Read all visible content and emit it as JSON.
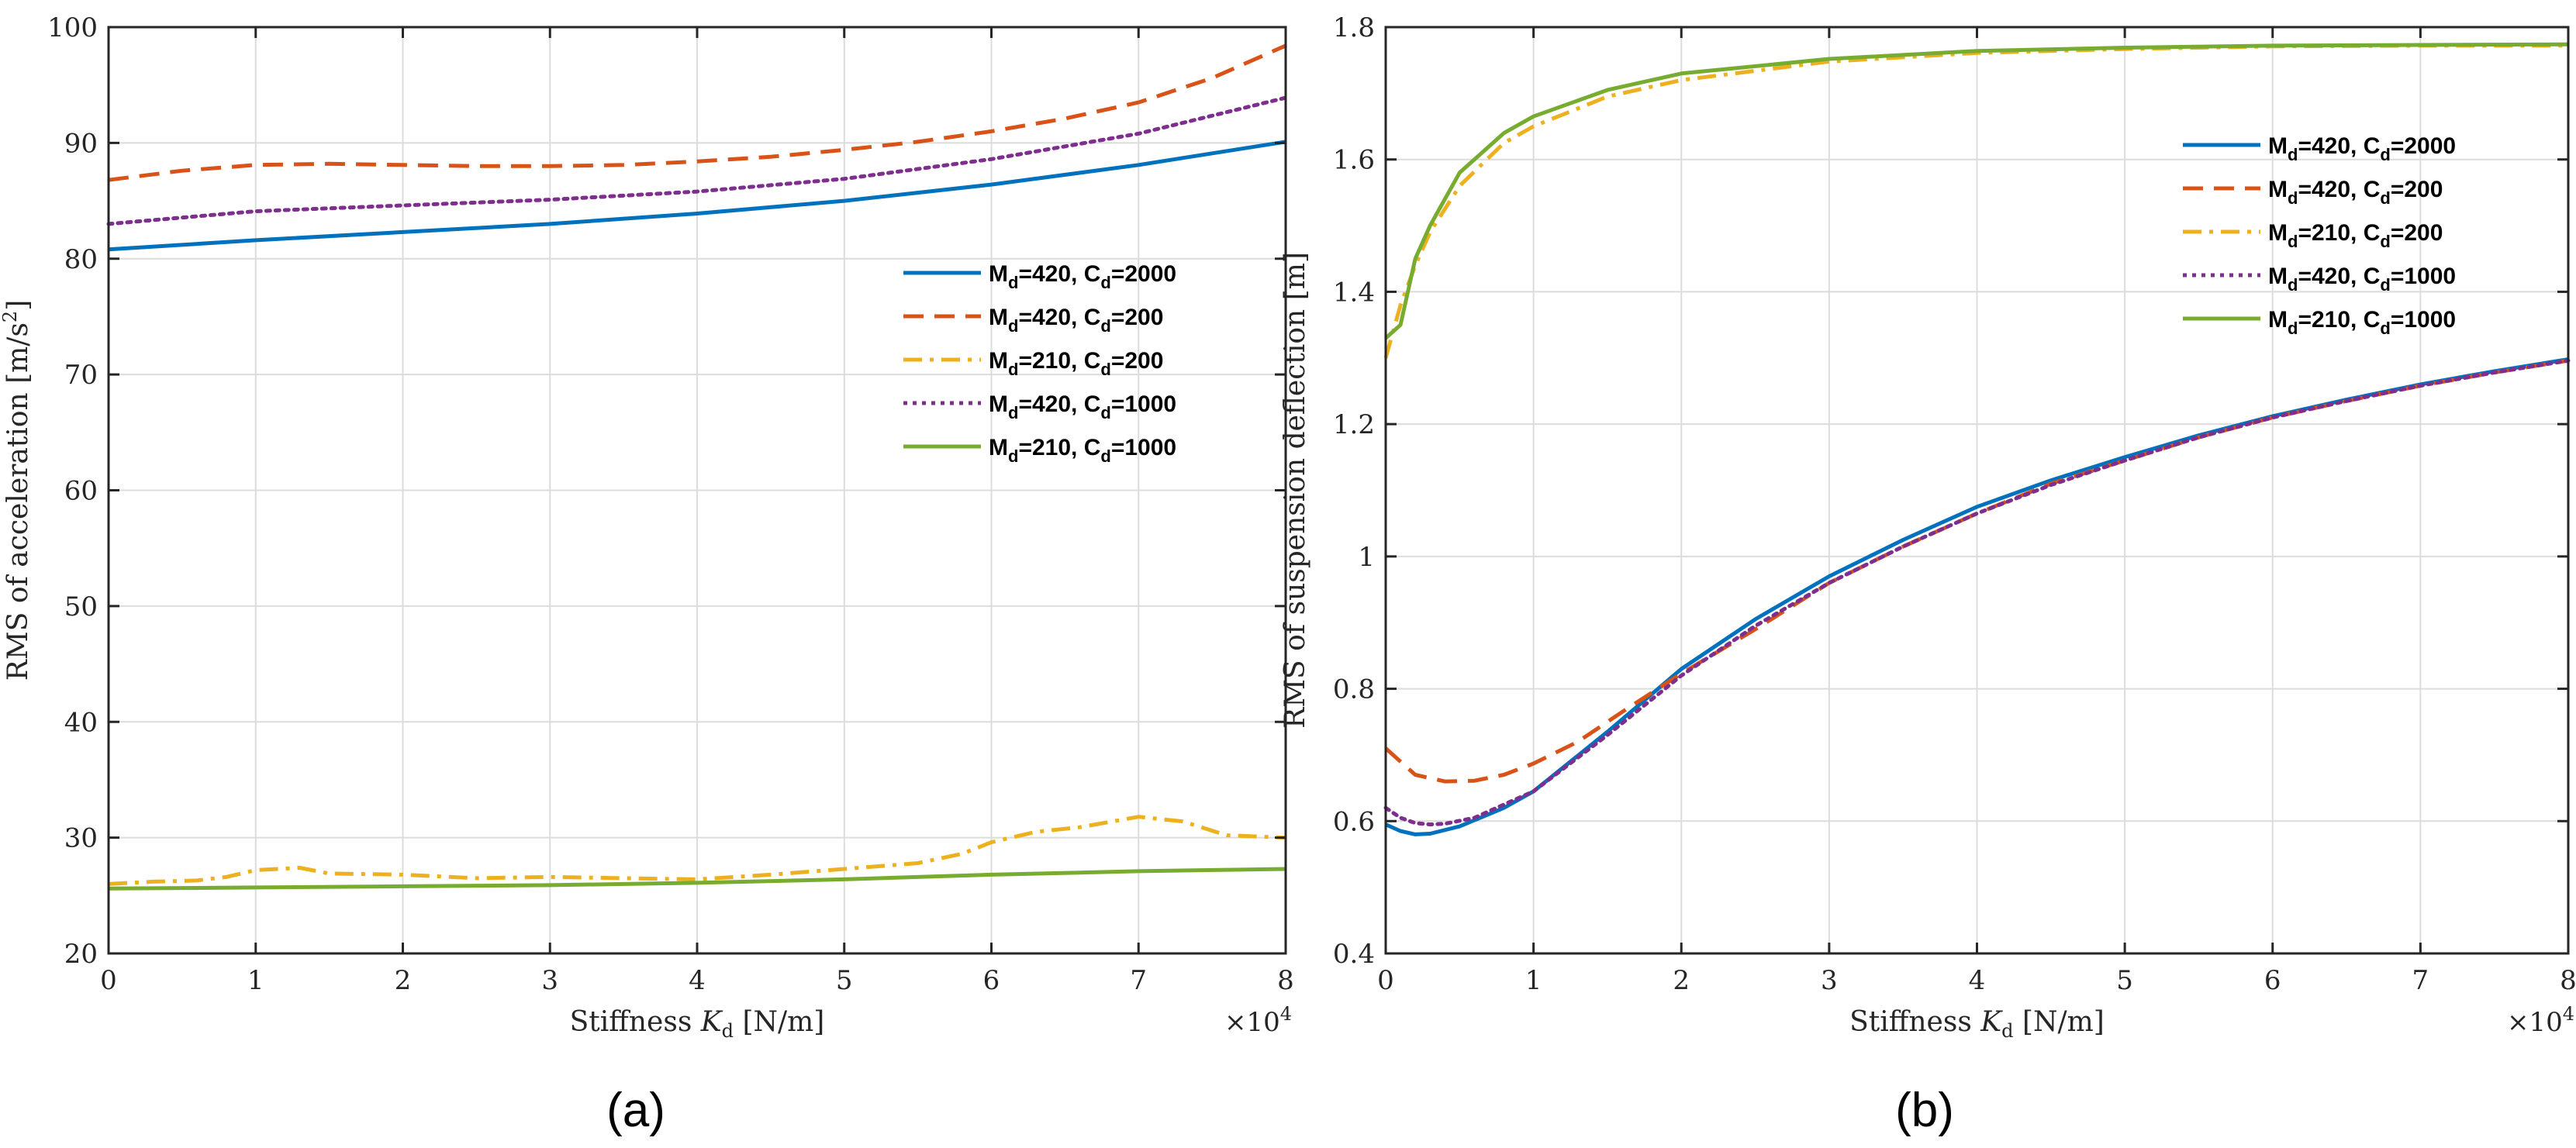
{
  "chart_data": [
    {
      "type": "line",
      "panel_label": "(a)",
      "xlabel": "Stiffness K_d [N/m]",
      "ylabel": "RMS of acceleration [m/s^2]",
      "x_multiplier": "×10^4",
      "xlim": [
        0,
        8
      ],
      "ylim": [
        20,
        100
      ],
      "xticks": [
        "0",
        "1",
        "2",
        "3",
        "4",
        "5",
        "6",
        "7",
        "8"
      ],
      "yticks": [
        "20",
        "30",
        "40",
        "50",
        "60",
        "70",
        "80",
        "90",
        "100"
      ],
      "grid": true,
      "legend_position": "center-right",
      "series": [
        {
          "name": "Md=420, Cd=2000",
          "legend": {
            "m": "420",
            "c": "2000"
          },
          "color": "#0072BD",
          "dash": "solid",
          "x": [
            0,
            1,
            2,
            3,
            4,
            5,
            6,
            7,
            8
          ],
          "y": [
            80.8,
            81.6,
            82.3,
            83.0,
            83.9,
            85.0,
            86.4,
            88.1,
            90.1
          ]
        },
        {
          "name": "Md=420, Cd=200",
          "legend": {
            "m": "420",
            "c": "200"
          },
          "color": "#D95319",
          "dash": "dashed",
          "x": [
            0,
            0.5,
            1,
            1.5,
            2,
            2.5,
            3,
            3.5,
            4,
            4.5,
            5,
            5.5,
            6,
            6.5,
            7,
            7.5,
            8
          ],
          "y": [
            86.8,
            87.6,
            88.1,
            88.2,
            88.1,
            88.0,
            88.0,
            88.1,
            88.4,
            88.8,
            89.4,
            90.1,
            91.0,
            92.1,
            93.5,
            95.6,
            98.4
          ]
        },
        {
          "name": "Md=210, Cd=200",
          "legend": {
            "m": "210",
            "c": "200"
          },
          "color": "#EDB120",
          "dash": "dashdot",
          "x": [
            0,
            0.3,
            0.6,
            0.8,
            1.0,
            1.3,
            1.5,
            2,
            2.5,
            3,
            3.5,
            4,
            4.5,
            5,
            5.5,
            5.8,
            6,
            6.3,
            6.6,
            7.0,
            7.3,
            7.6,
            8
          ],
          "y": [
            26.0,
            26.2,
            26.3,
            26.6,
            27.2,
            27.4,
            26.9,
            26.8,
            26.5,
            26.6,
            26.5,
            26.4,
            26.8,
            27.3,
            27.8,
            28.6,
            29.6,
            30.5,
            30.9,
            31.8,
            31.4,
            30.2,
            30.0
          ]
        },
        {
          "name": "Md=420, Cd=1000",
          "legend": {
            "m": "420",
            "c": "1000"
          },
          "color": "#7E2F8E",
          "dash": "dotted",
          "x": [
            0,
            1,
            2,
            3,
            4,
            5,
            6,
            7,
            8
          ],
          "y": [
            83.0,
            84.1,
            84.6,
            85.1,
            85.8,
            86.9,
            88.6,
            90.8,
            93.9
          ]
        },
        {
          "name": "Md=210, Cd=1000",
          "legend": {
            "m": "210",
            "c": "1000"
          },
          "color": "#77AC30",
          "dash": "solid",
          "x": [
            0,
            1,
            2,
            3,
            4,
            5,
            6,
            7,
            8
          ],
          "y": [
            25.6,
            25.7,
            25.8,
            25.9,
            26.1,
            26.4,
            26.8,
            27.1,
            27.3
          ]
        }
      ]
    },
    {
      "type": "line",
      "panel_label": "(b)",
      "xlabel": "Stiffness K_d [N/m]",
      "ylabel": "RMS of suspension deflection [m]",
      "x_multiplier": "×10^4",
      "xlim": [
        0,
        8
      ],
      "ylim": [
        0.4,
        1.8
      ],
      "xticks": [
        "0",
        "1",
        "2",
        "3",
        "4",
        "5",
        "6",
        "7",
        "8"
      ],
      "yticks": [
        "0.4",
        "0.6",
        "0.8",
        "1",
        "1.2",
        "1.4",
        "1.6",
        "1.8"
      ],
      "grid": true,
      "legend_position": "top-right",
      "series": [
        {
          "name": "Md=420, Cd=2000",
          "legend": {
            "m": "420",
            "c": "2000"
          },
          "color": "#0072BD",
          "dash": "solid",
          "x": [
            0,
            0.1,
            0.2,
            0.3,
            0.5,
            0.8,
            1,
            1.5,
            2,
            2.5,
            3,
            3.5,
            4,
            4.5,
            5,
            5.5,
            6,
            6.5,
            7,
            7.5,
            8
          ],
          "y": [
            0.595,
            0.585,
            0.58,
            0.581,
            0.592,
            0.62,
            0.645,
            0.735,
            0.83,
            0.905,
            0.97,
            1.025,
            1.075,
            1.115,
            1.15,
            1.183,
            1.212,
            1.237,
            1.26,
            1.28,
            1.298
          ]
        },
        {
          "name": "Md=420, Cd=200",
          "legend": {
            "m": "420",
            "c": "200"
          },
          "color": "#D95319",
          "dash": "dashed",
          "x": [
            0,
            0.2,
            0.4,
            0.6,
            0.8,
            1,
            1.3,
            1.6,
            2,
            2.5,
            3,
            3.5,
            4,
            4.5,
            5,
            5.5,
            6,
            6.5,
            7,
            7.5,
            8
          ],
          "y": [
            0.71,
            0.67,
            0.66,
            0.661,
            0.67,
            0.687,
            0.72,
            0.765,
            0.823,
            0.89,
            0.96,
            1.015,
            1.065,
            1.11,
            1.145,
            1.18,
            1.21,
            1.235,
            1.258,
            1.278,
            1.296
          ]
        },
        {
          "name": "Md=210, Cd=200",
          "legend": {
            "m": "210",
            "c": "200"
          },
          "color": "#EDB120",
          "dash": "dashdot",
          "x": [
            0,
            0.1,
            0.2,
            0.3,
            0.5,
            0.8,
            1,
            1.5,
            2,
            3,
            4,
            5,
            6,
            7,
            8
          ],
          "y": [
            1.3,
            1.38,
            1.44,
            1.49,
            1.56,
            1.625,
            1.65,
            1.695,
            1.72,
            1.748,
            1.761,
            1.767,
            1.771,
            1.772,
            1.772
          ]
        },
        {
          "name": "Md=420, Cd=1000",
          "legend": {
            "m": "420",
            "c": "1000"
          },
          "color": "#7E2F8E",
          "dash": "dotted",
          "x": [
            0,
            0.1,
            0.2,
            0.3,
            0.4,
            0.6,
            0.8,
            1,
            1.5,
            2,
            2.5,
            3,
            3.5,
            4,
            4.5,
            5,
            5.5,
            6,
            6.5,
            7,
            7.5,
            8
          ],
          "y": [
            0.62,
            0.605,
            0.597,
            0.595,
            0.596,
            0.605,
            0.625,
            0.645,
            0.73,
            0.82,
            0.895,
            0.96,
            1.015,
            1.065,
            1.108,
            1.145,
            1.18,
            1.21,
            1.235,
            1.258,
            1.278,
            1.296
          ]
        },
        {
          "name": "Md=210, Cd=1000",
          "legend": {
            "m": "210",
            "c": "1000"
          },
          "color": "#77AC30",
          "dash": "solid",
          "x": [
            0,
            0.1,
            0.2,
            0.3,
            0.5,
            0.8,
            1,
            1.5,
            2,
            3,
            4,
            5,
            6,
            7,
            8
          ],
          "y": [
            1.33,
            1.35,
            1.45,
            1.5,
            1.58,
            1.64,
            1.665,
            1.705,
            1.73,
            1.752,
            1.764,
            1.769,
            1.772,
            1.773,
            1.774
          ]
        }
      ]
    }
  ]
}
